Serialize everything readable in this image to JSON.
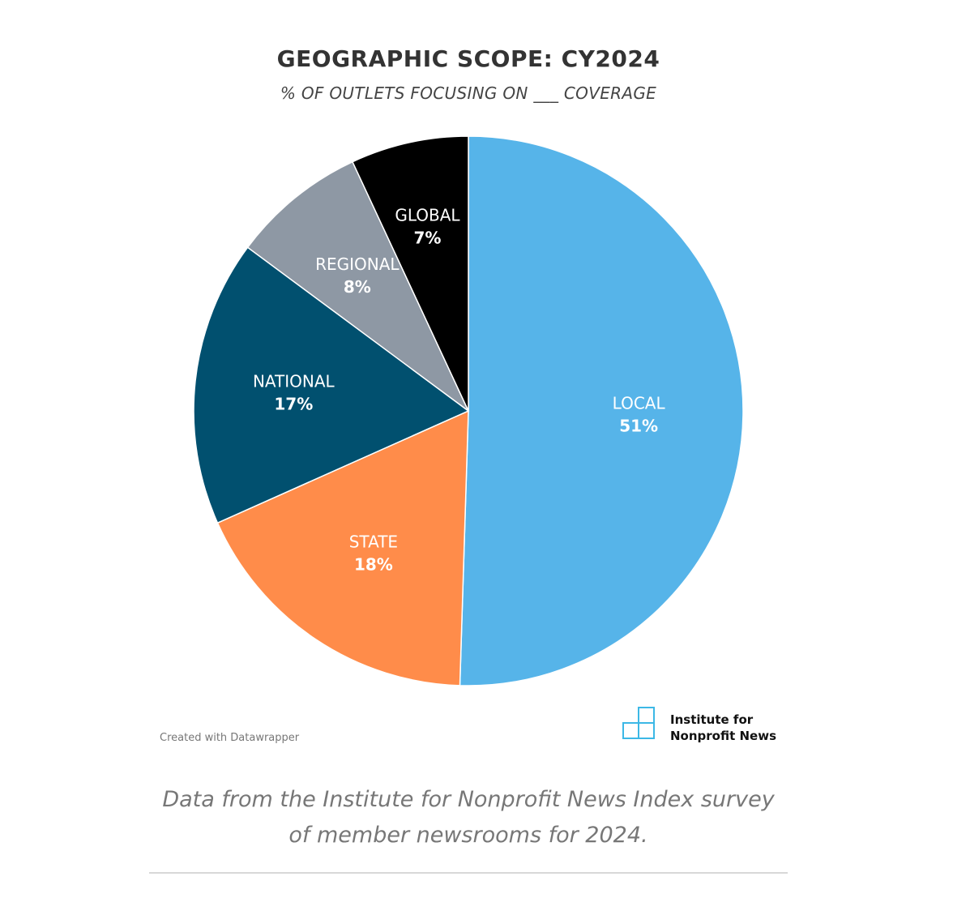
{
  "chart_data": {
    "type": "pie",
    "title": "GEOGRAPHIC SCOPE: CY2024",
    "subtitle": "% OF OUTLETS FOCUSING ON ___ COVERAGE",
    "slices": [
      {
        "label": "LOCAL",
        "value": 51,
        "display": "51%",
        "color": "#56b4e9"
      },
      {
        "label": "STATE",
        "value": 18,
        "display": "18%",
        "color": "#ff8c4a"
      },
      {
        "label": "NATIONAL",
        "value": 17,
        "display": "17%",
        "color": "#01506f"
      },
      {
        "label": "REGIONAL",
        "value": 8,
        "display": "8%",
        "color": "#8e98a4"
      },
      {
        "label": "GLOBAL",
        "value": 7,
        "display": "7%",
        "color": "#000000"
      }
    ]
  },
  "footer": {
    "credit": "Created with Datawrapper",
    "logo_line1": "Institute for",
    "logo_line2": "Nonprofit News",
    "logo_icon": "inn-logo-icon",
    "logo_color": "#3cb8e6"
  },
  "caption": {
    "line1": "Data from the Institute for Nonprofit News Index survey",
    "line2": "of member newsrooms for 2024."
  }
}
